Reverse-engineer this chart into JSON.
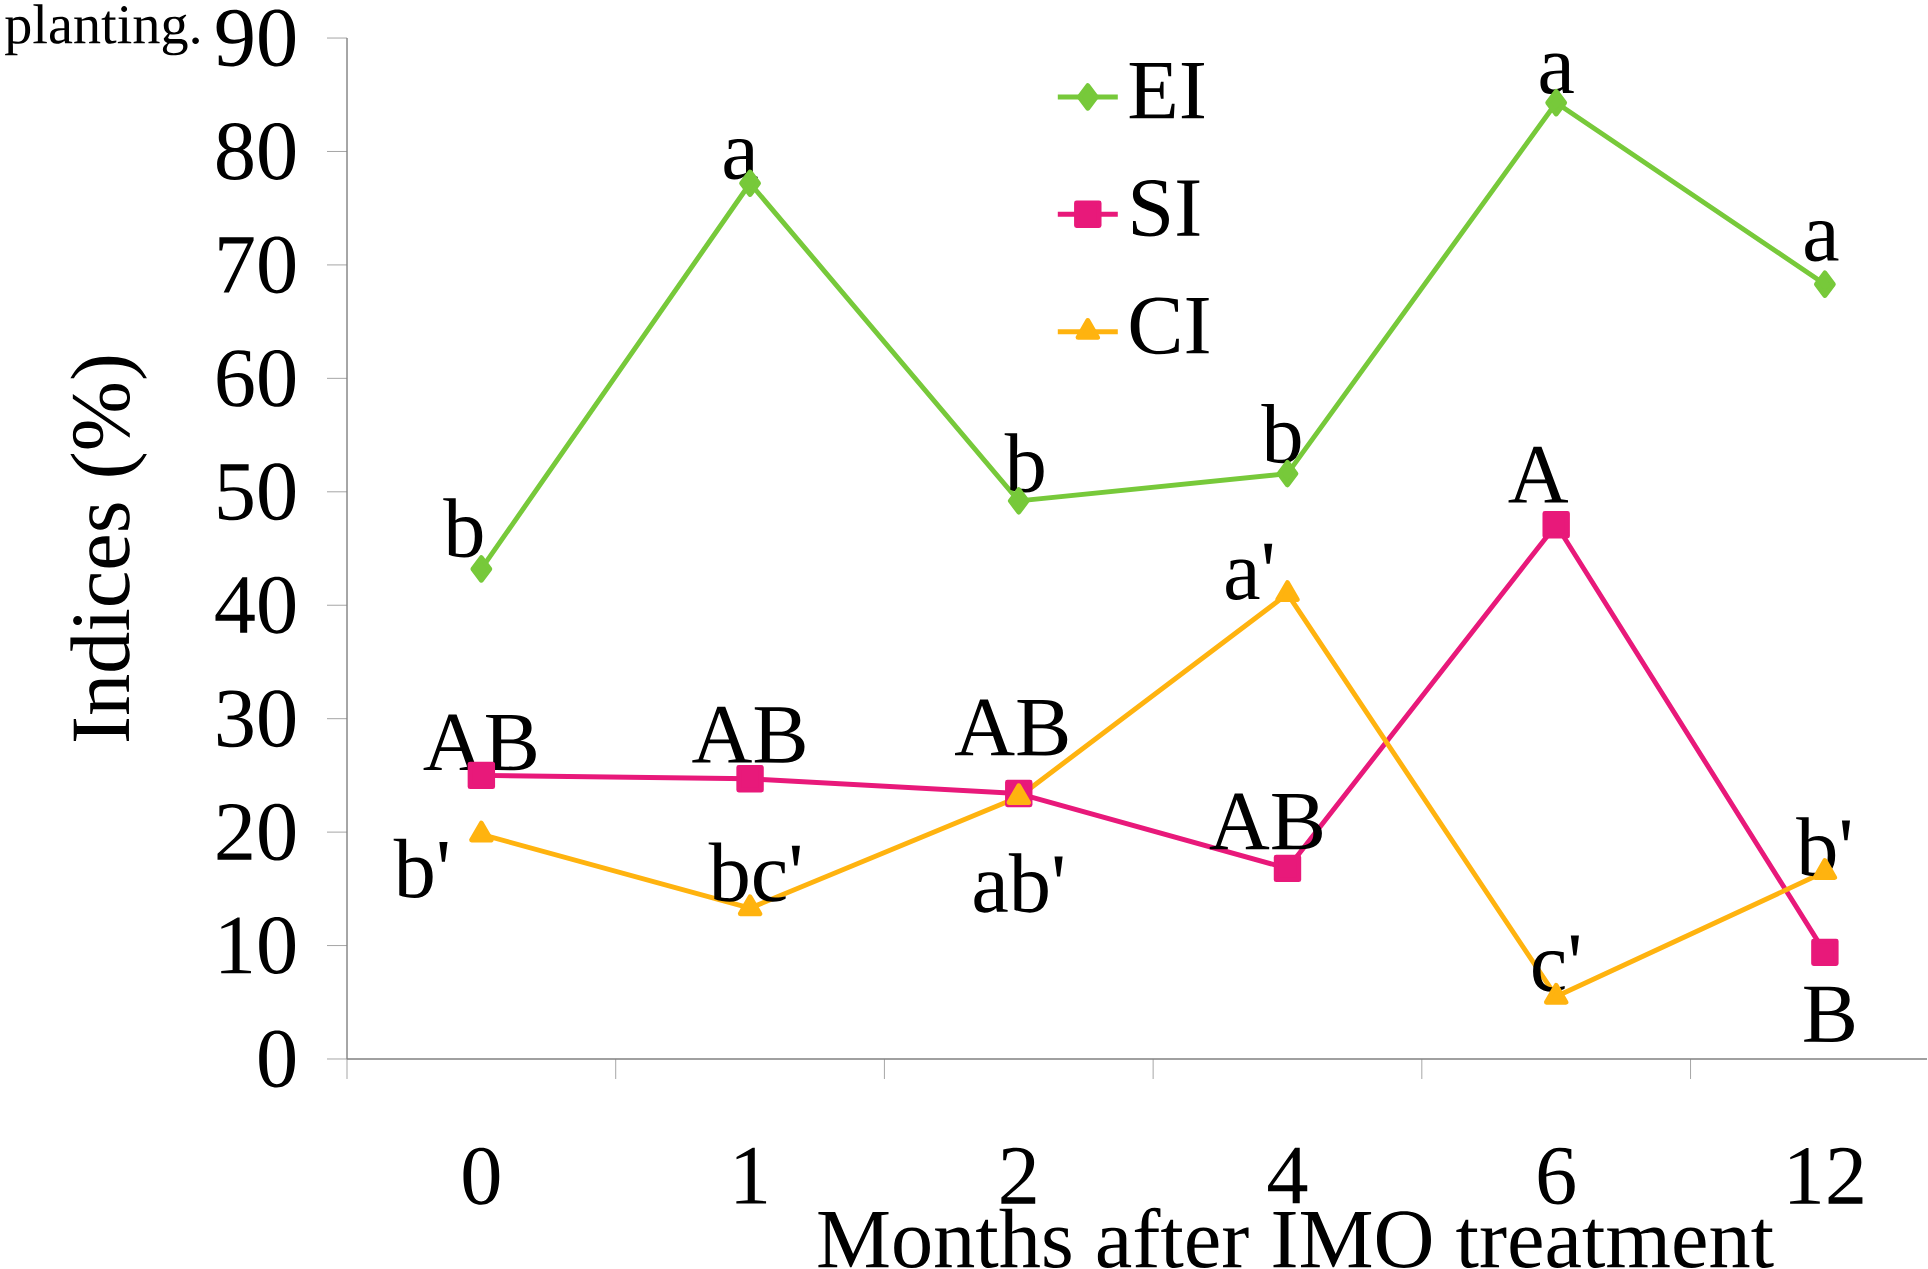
{
  "chart_data": {
    "type": "line",
    "xlabel": "Months after IMO treatment",
    "ylabel": "Indices (%)",
    "categories": [
      "0",
      "1",
      "2",
      "4",
      "6",
      "12"
    ],
    "series": [
      {
        "name": "EI",
        "color": "#77c93a",
        "marker": "diamond",
        "values": [
          43.2,
          77.2,
          49.2,
          51.6,
          84.3,
          68.3
        ]
      },
      {
        "name": "SI",
        "color": "#e8197a",
        "marker": "square",
        "values": [
          25.0,
          24.7,
          23.4,
          16.8,
          47.1,
          9.4
        ]
      },
      {
        "name": "CI",
        "color": "#ffb30f",
        "marker": "triangle",
        "values": [
          19.8,
          13.3,
          23.1,
          41.0,
          5.5,
          16.5
        ]
      }
    ],
    "ylim": [
      0,
      90
    ],
    "yticks": [
      0,
      10,
      20,
      30,
      40,
      50,
      60,
      70,
      80,
      90
    ],
    "grid": false,
    "legend": "top",
    "line_style": "solid",
    "annotations": [
      "planting.",
      "b",
      "a",
      "b",
      "b",
      "a",
      "a",
      "AB",
      "AB",
      "AB",
      "AB",
      "A",
      "B",
      "b'",
      "bc'",
      "ab'",
      "a'",
      "c'",
      "b'"
    ]
  }
}
